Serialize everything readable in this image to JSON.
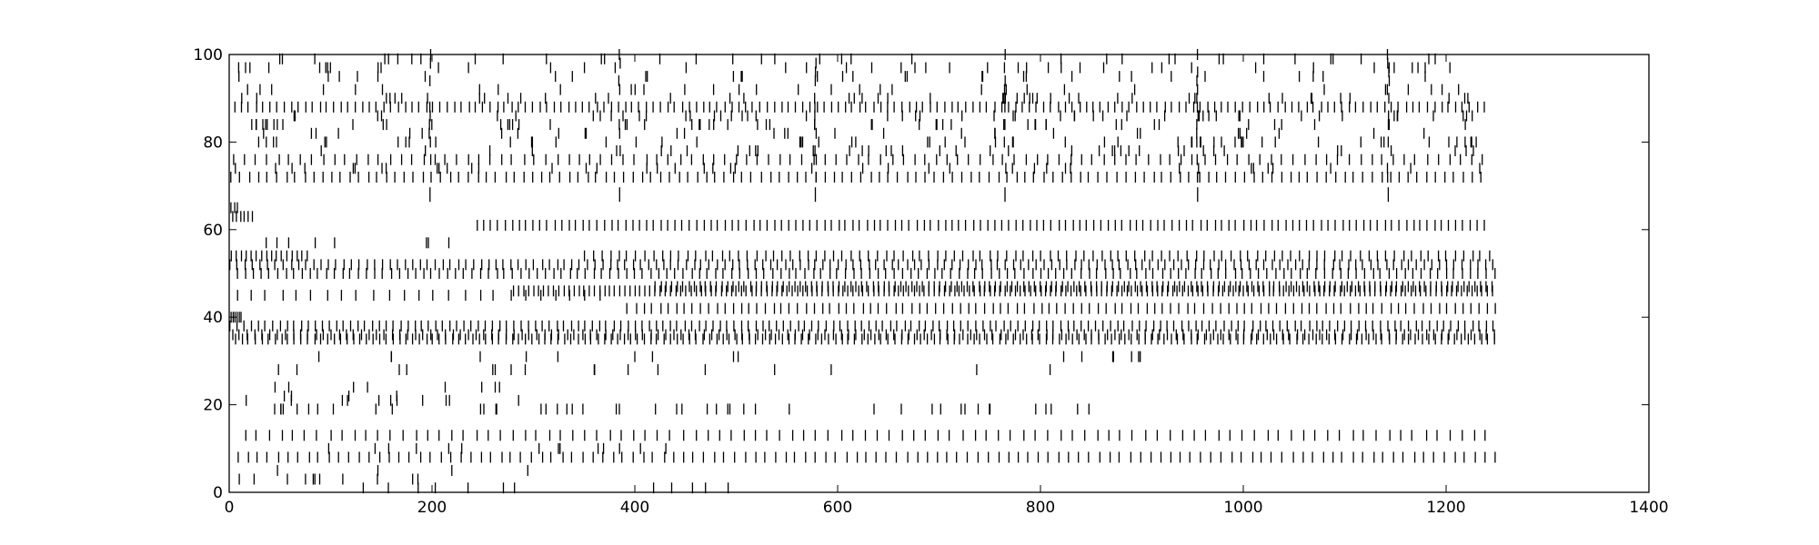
{
  "chart_data": {
    "type": "scatter",
    "marker": "vertical-line",
    "title": "",
    "xlabel": "",
    "ylabel": "",
    "xlim": [
      0,
      1400
    ],
    "ylim": [
      0,
      100
    ],
    "xticks": [
      0,
      200,
      400,
      600,
      800,
      1000,
      1200,
      1400
    ],
    "yticks": [
      0,
      20,
      40,
      60,
      80,
      100
    ],
    "xtick_labels": [
      "0",
      "200",
      "400",
      "600",
      "800",
      "1000",
      "1200",
      "1400"
    ],
    "ytick_labels": [
      "0",
      "20",
      "40",
      "60",
      "80",
      "100"
    ],
    "grid": false,
    "legend": "none",
    "colors": {
      "spike": "#000000",
      "axes": "#000000",
      "background": "#ffffff"
    },
    "x_end": 1250,
    "trains": [
      {
        "neuron": 1,
        "start": 30,
        "end": 520,
        "rate": 0.028
      },
      {
        "neuron": 3,
        "start": 5,
        "end": 250,
        "rate": 0.03
      },
      {
        "neuron": 5,
        "start": 20,
        "end": 300,
        "rate": 0.025
      },
      {
        "neuron": 8,
        "start": 5,
        "end": 1250,
        "interval": 10
      },
      {
        "neuron": 10,
        "start": 40,
        "end": 480,
        "rate": 0.035
      },
      {
        "neuron": 13,
        "start": 5,
        "end": 1250,
        "interval": 12
      },
      {
        "neuron": 19,
        "start": 5,
        "end": 850,
        "rate": 0.05
      },
      {
        "neuron": 21,
        "start": 10,
        "end": 300,
        "rate": 0.03
      },
      {
        "neuron": 22,
        "start": 20,
        "end": 200,
        "rate": 0.03
      },
      {
        "neuron": 24,
        "start": 30,
        "end": 320,
        "rate": 0.025
      },
      {
        "neuron": 28,
        "start": 5,
        "end": 1000,
        "rate": 0.012
      },
      {
        "neuron": 31,
        "start": 80,
        "end": 900,
        "rate": 0.012
      },
      {
        "neuron": 35,
        "start": 0,
        "end": 1250,
        "interval": 6.5
      },
      {
        "neuron": 36,
        "start": 0,
        "end": 1250,
        "interval": 7.5
      },
      {
        "neuron": 38,
        "start": 0,
        "end": 1250,
        "interval": 7
      },
      {
        "neuron": 40,
        "start": 0,
        "end": 12,
        "interval": 2
      },
      {
        "neuron": 42,
        "start": 385,
        "end": 1250,
        "interval": 8
      },
      {
        "neuron": 45,
        "start": 0,
        "end": 380,
        "interval": 15
      },
      {
        "neuron": 46,
        "start": 280,
        "end": 1250,
        "interval": 5
      },
      {
        "neuron": 47,
        "start": 420,
        "end": 1250,
        "interval": 5.5
      },
      {
        "neuron": 50,
        "start": 0,
        "end": 1250,
        "interval": 8
      },
      {
        "neuron": 52,
        "start": 0,
        "end": 1250,
        "interval": 7.5
      },
      {
        "neuron": 54,
        "start": 0,
        "end": 80,
        "interval": 5
      },
      {
        "neuron": 54,
        "start": 350,
        "end": 1250,
        "interval": 8.5
      },
      {
        "neuron": 57,
        "start": 0,
        "end": 220,
        "rate": 0.03
      },
      {
        "neuron": 61,
        "start": 240,
        "end": 1240,
        "interval": 7
      },
      {
        "neuron": 63,
        "start": 0,
        "end": 25,
        "interval": 4
      },
      {
        "neuron": 65,
        "start": 0,
        "end": 10,
        "interval": 3
      },
      {
        "neuron": 72,
        "start": 0,
        "end": 1240,
        "interval": 9
      },
      {
        "neuron": 74,
        "start": 0,
        "end": 1240,
        "rate": 0.035
      },
      {
        "neuron": 76,
        "start": 0,
        "end": 1240,
        "interval": 11
      },
      {
        "neuron": 78,
        "start": 0,
        "end": 1240,
        "rate": 0.04
      },
      {
        "neuron": 80,
        "start": 0,
        "end": 1240,
        "rate": 0.045
      },
      {
        "neuron": 82,
        "start": 0,
        "end": 1240,
        "rate": 0.03
      },
      {
        "neuron": 84,
        "start": 0,
        "end": 1240,
        "rate": 0.04
      },
      {
        "neuron": 86,
        "start": 0,
        "end": 1240,
        "rate": 0.04
      },
      {
        "neuron": 88,
        "start": 0,
        "end": 1240,
        "interval": 7
      },
      {
        "neuron": 90,
        "start": 0,
        "end": 1240,
        "rate": 0.03
      },
      {
        "neuron": 92,
        "start": 0,
        "end": 1240,
        "rate": 0.025
      },
      {
        "neuron": 95,
        "start": 0,
        "end": 1240,
        "rate": 0.03
      },
      {
        "neuron": 97,
        "start": 0,
        "end": 1240,
        "rate": 0.035
      },
      {
        "neuron": 99,
        "start": 0,
        "end": 1240,
        "rate": 0.03
      }
    ],
    "sync_events": [
      {
        "x": 198,
        "from": 68,
        "to": 100
      },
      {
        "x": 385,
        "from": 68,
        "to": 100
      },
      {
        "x": 578,
        "from": 68,
        "to": 100
      },
      {
        "x": 765,
        "from": 68,
        "to": 100
      },
      {
        "x": 955,
        "from": 68,
        "to": 100
      },
      {
        "x": 1143,
        "from": 68,
        "to": 100
      }
    ]
  }
}
